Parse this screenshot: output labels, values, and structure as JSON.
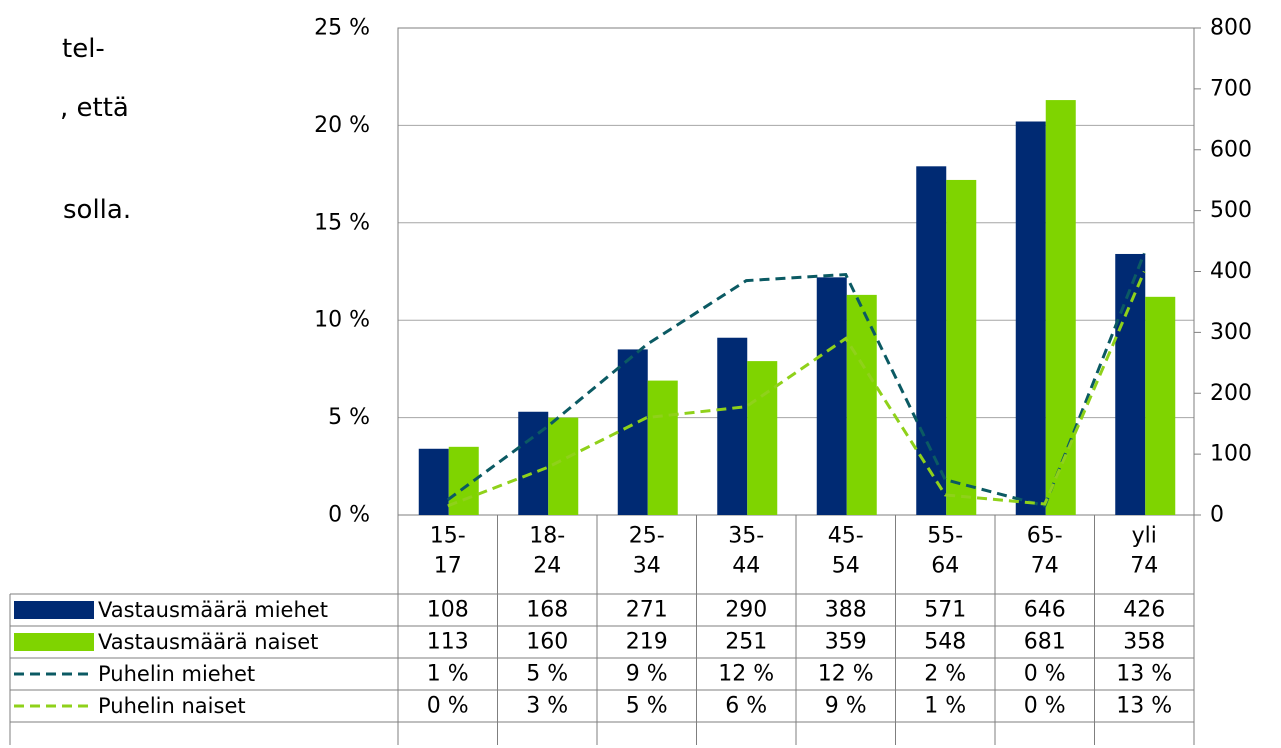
{
  "side_text": [
    "tel-",
    ", että",
    "solla."
  ],
  "colors": {
    "men_bar": "#002a73",
    "women_bar": "#7fd400",
    "men_line": "#0b5a63",
    "women_line": "#8fd11a",
    "grid": "#a6a6a6",
    "border": "#7f7f7f"
  },
  "chart_data": {
    "type": "bar",
    "categories": [
      [
        "15-",
        "17"
      ],
      [
        "18-",
        "24"
      ],
      [
        "25-",
        "34"
      ],
      [
        "35-",
        "44"
      ],
      [
        "45-",
        "54"
      ],
      [
        "55-",
        "64"
      ],
      [
        "65-",
        "74"
      ],
      [
        "yli",
        "74"
      ]
    ],
    "y_left": {
      "ticks": [
        "0 %",
        "5 %",
        "10 %",
        "15 %",
        "20 %",
        "25 %"
      ],
      "range": [
        0,
        25
      ]
    },
    "y_right": {
      "ticks": [
        "0",
        "100",
        "200",
        "300",
        "400",
        "500",
        "600",
        "700",
        "800"
      ],
      "range": [
        0,
        800
      ]
    },
    "grid": true,
    "bar_series": [
      {
        "name": "Vastausmäärä miehet",
        "axis": "left",
        "values_pct": [
          3.4,
          5.3,
          8.5,
          9.1,
          12.2,
          17.9,
          20.2,
          13.4
        ]
      },
      {
        "name": "Vastausmäärä naiset",
        "axis": "left",
        "values_pct": [
          3.5,
          5.0,
          6.9,
          7.9,
          11.3,
          17.2,
          21.3,
          11.2
        ]
      }
    ],
    "line_series": [
      {
        "name": "Puhelin miehet",
        "axis": "right",
        "values": [
          25,
          145,
          280,
          385,
          395,
          58,
          15,
          430
        ]
      },
      {
        "name": "Puhelin naiset",
        "axis": "right",
        "values": [
          15,
          78,
          160,
          178,
          290,
          33,
          18,
          400
        ]
      }
    ],
    "table": {
      "rows": [
        {
          "label": "Vastausmäärä miehet",
          "style": "bar-men",
          "cells": [
            "108",
            "168",
            "271",
            "290",
            "388",
            "571",
            "646",
            "426"
          ]
        },
        {
          "label": "Vastausmäärä naiset",
          "style": "bar-women",
          "cells": [
            "113",
            "160",
            "219",
            "251",
            "359",
            "548",
            "681",
            "358"
          ]
        },
        {
          "label": "Puhelin miehet",
          "style": "line-men",
          "cells": [
            "1 %",
            "5 %",
            "9 %",
            "12 %",
            "12 %",
            "2 %",
            "0 %",
            "13 %"
          ]
        },
        {
          "label": "Puhelin naiset",
          "style": "line-women",
          "cells": [
            "0 %",
            "3 %",
            "5 %",
            "6 %",
            "9 %",
            "1 %",
            "0 %",
            "13 %"
          ]
        }
      ]
    }
  }
}
